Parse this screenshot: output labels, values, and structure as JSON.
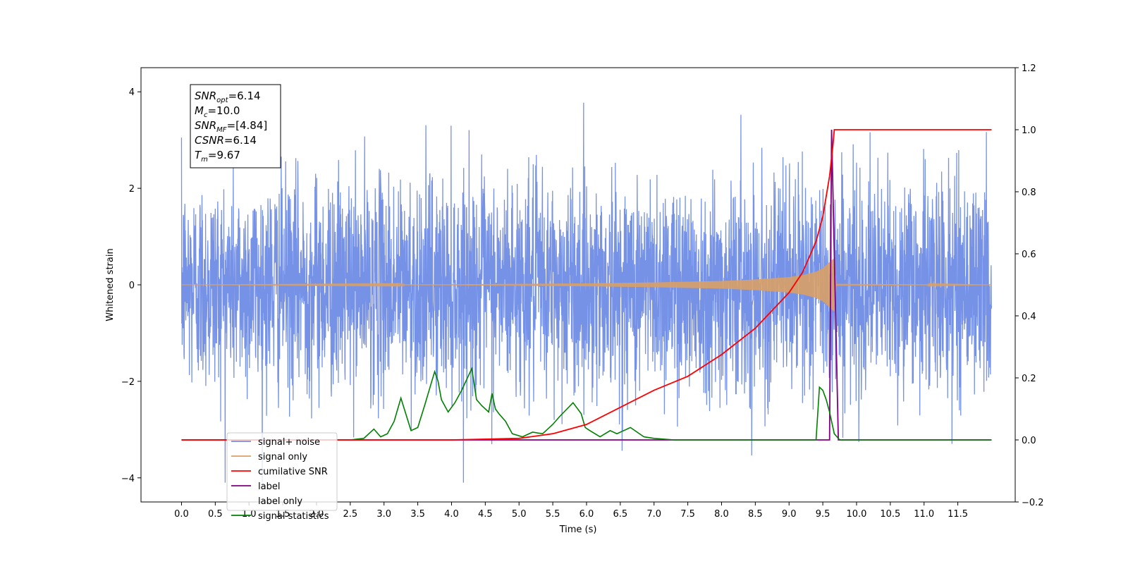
{
  "chart_data": {
    "type": "line",
    "xlabel": "Time (s)",
    "ylabel": "Whitened strain",
    "xlim": [
      -0.6,
      12.35
    ],
    "ylim": [
      -4.5,
      4.5
    ],
    "y2lim": [
      -0.2,
      1.2
    ],
    "xticks": [
      0.0,
      0.5,
      1.0,
      1.5,
      2.0,
      2.5,
      3.0,
      3.5,
      4.0,
      4.5,
      5.0,
      5.5,
      6.0,
      6.5,
      7.0,
      7.5,
      8.0,
      8.5,
      9.0,
      9.5,
      10.0,
      10.5,
      11.0,
      11.5
    ],
    "xtick_labels": [
      "0.0",
      "0.5",
      "1.0",
      "1.5",
      "2.0",
      "2.5",
      "3.0",
      "3.5",
      "4.0",
      "4.5",
      "5.0",
      "5.5",
      "6.0",
      "6.5",
      "7.0",
      "7.5",
      "8.0",
      "8.5",
      "9.0",
      "9.5",
      "10.0",
      "10.5",
      "11.0",
      "11.5"
    ],
    "yticks": [
      -4,
      -2,
      0,
      2,
      4
    ],
    "ytick_labels": [
      "−4",
      "−2",
      "0",
      "2",
      "4"
    ],
    "y2ticks": [
      -0.2,
      0.0,
      0.2,
      0.4,
      0.6,
      0.8,
      1.0,
      1.2
    ],
    "y2tick_labels": [
      "−0.2",
      "0.0",
      "0.2",
      "0.4",
      "0.6",
      "0.8",
      "1.0",
      "1.2"
    ],
    "grid": false,
    "legend_placement": "lower-left",
    "series": [
      {
        "name": "signal+ noise",
        "axis": "left",
        "color": "#6f8ce6",
        "description_values": {
          "x_range": [
            0.0,
            12.0
          ],
          "typical_amplitude_std": 1.1,
          "peak_max": 4.1,
          "peak_min": -4.1
        }
      },
      {
        "name": "signal only",
        "axis": "left",
        "color": "#d9a066",
        "envelope": {
          "x": [
            0.0,
            4.0,
            6.0,
            7.0,
            8.0,
            8.5,
            9.0,
            9.2,
            9.4,
            9.5,
            9.55,
            9.6,
            9.67,
            9.7,
            12.0
          ],
          "y": [
            0.0,
            0.01,
            0.03,
            0.05,
            0.08,
            0.11,
            0.16,
            0.2,
            0.27,
            0.34,
            0.4,
            0.47,
            0.55,
            0.02,
            0.0
          ]
        }
      },
      {
        "name": "cumilative SNR",
        "axis": "right",
        "color": "#ff0000",
        "x": [
          0.0,
          4.0,
          5.0,
          5.5,
          6.0,
          6.5,
          7.0,
          7.5,
          8.0,
          8.5,
          9.0,
          9.2,
          9.4,
          9.5,
          9.6,
          9.65,
          9.67,
          12.0
        ],
        "y": [
          0.0,
          0.0,
          0.005,
          0.02,
          0.05,
          0.105,
          0.16,
          0.205,
          0.275,
          0.36,
          0.475,
          0.54,
          0.64,
          0.72,
          0.85,
          0.95,
          1.0,
          1.0
        ]
      },
      {
        "name": "label",
        "axis": "right",
        "color": "#800080",
        "x": [
          0.0,
          9.6,
          9.63,
          9.73,
          12.0
        ],
        "y": [
          0.0,
          0.0,
          1.0,
          0.0,
          0.0
        ]
      },
      {
        "name": "label only",
        "axis": "right",
        "color": "#ffffff"
      },
      {
        "name": "signal statistics",
        "axis": "right",
        "color": "#008000",
        "x": [
          0.0,
          2.5,
          2.7,
          2.85,
          2.95,
          3.05,
          3.15,
          3.25,
          3.3,
          3.4,
          3.5,
          3.6,
          3.75,
          3.8,
          3.85,
          3.95,
          4.05,
          4.15,
          4.3,
          4.37,
          4.45,
          4.55,
          4.6,
          4.65,
          4.7,
          4.8,
          4.9,
          5.05,
          5.2,
          5.35,
          5.5,
          5.6,
          5.8,
          5.92,
          5.98,
          6.05,
          6.2,
          6.35,
          6.45,
          6.55,
          6.65,
          6.75,
          6.85,
          7.0,
          7.3,
          7.6,
          8.0,
          8.5,
          9.3,
          9.4,
          9.45,
          9.5,
          9.55,
          9.6,
          9.67,
          9.75,
          9.9,
          12.0
        ],
        "y": [
          0.0,
          0.0,
          0.005,
          0.035,
          0.01,
          0.02,
          0.06,
          0.135,
          0.1,
          0.03,
          0.04,
          0.11,
          0.22,
          0.19,
          0.13,
          0.09,
          0.12,
          0.16,
          0.23,
          0.13,
          0.11,
          0.09,
          0.15,
          0.1,
          0.085,
          0.06,
          0.02,
          0.01,
          0.025,
          0.02,
          0.05,
          0.075,
          0.12,
          0.085,
          0.04,
          0.03,
          0.01,
          0.03,
          0.02,
          0.03,
          0.04,
          0.025,
          0.01,
          0.005,
          0.0,
          0.0,
          0.0,
          0.0,
          0.0,
          0.0,
          0.17,
          0.16,
          0.13,
          0.09,
          0.02,
          0.0,
          0.0,
          0.0
        ]
      }
    ],
    "annotation": {
      "lines": [
        {
          "sym": "SNR",
          "sub": "opt",
          "val": "=6.14"
        },
        {
          "sym": "M",
          "sub": "c",
          "val": "=10.0"
        },
        {
          "sym": "SNR",
          "sub": "MF",
          "val": "=[4.84]"
        },
        {
          "sym": "CSNR",
          "sub": "",
          "val": "=6.14"
        },
        {
          "sym": "T",
          "sub": "m",
          "val": "=9.67"
        }
      ]
    }
  }
}
